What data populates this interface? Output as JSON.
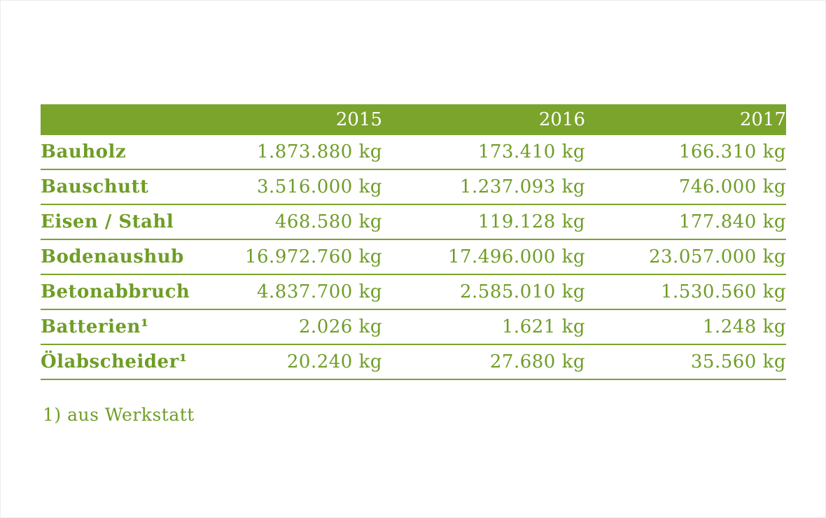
{
  "colors": {
    "accent_green": "#7aa42c",
    "text_green": "#6f9d27",
    "header_text": "#ffffff",
    "background": "#ffffff"
  },
  "chart_data": {
    "type": "table",
    "title": "",
    "columns": [
      "",
      "2015",
      "2016",
      "2017"
    ],
    "unit": "kg",
    "rows": [
      {
        "label": "Bauholz",
        "values": [
          "1.873.880 kg",
          "173.410 kg",
          "166.310 kg"
        ]
      },
      {
        "label": "Bauschutt",
        "values": [
          "3.516.000 kg",
          "1.237.093 kg",
          "746.000 kg"
        ]
      },
      {
        "label": "Eisen / Stahl",
        "values": [
          "468.580 kg",
          "119.128 kg",
          "177.840 kg"
        ]
      },
      {
        "label": "Bodenaushub",
        "values": [
          "16.972.760 kg",
          "17.496.000 kg",
          "23.057.000 kg"
        ]
      },
      {
        "label": "Betonabbruch",
        "values": [
          "4.837.700 kg",
          "2.585.010 kg",
          "1.530.560 kg"
        ]
      },
      {
        "label": "Batterien¹",
        "values": [
          "2.026 kg",
          "1.621 kg",
          "1.248 kg"
        ]
      },
      {
        "label": "Ölabscheider¹",
        "values": [
          "20.240 kg",
          "27.680 kg",
          "35.560 kg"
        ]
      }
    ],
    "footnote": "1) aus Werkstatt"
  }
}
